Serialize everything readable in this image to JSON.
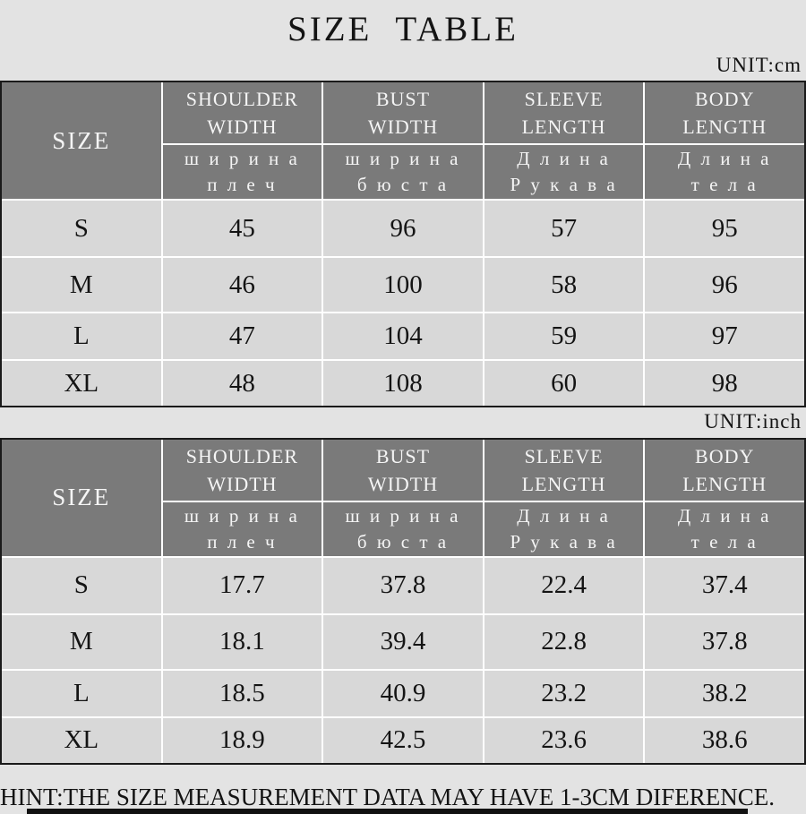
{
  "page": {
    "title": "SIZE TABLE",
    "hint": "HINT:THE SIZE MEASUREMENT DATA MAY HAVE 1-3CM DIFERENCE.",
    "colors": {
      "page_bg": "#e3e3e3",
      "header_bg": "#7a7a7a",
      "cell_bg": "#d8d8d8",
      "grid_line": "#ffffff",
      "table_border": "#1a1a1a",
      "text_dark": "#141414",
      "text_light": "#f5f5f5"
    }
  },
  "size_header": "SIZE",
  "columns": [
    {
      "en1": "SHOULDER",
      "en2": "WIDTH",
      "ru1": "ш и р и н а",
      "ru2": "п л е ч"
    },
    {
      "en1": "BUST",
      "en2": "WIDTH",
      "ru1": "ш и р и н а",
      "ru2": "б ю с т а"
    },
    {
      "en1": "SLEEVE",
      "en2": "LENGTH",
      "ru1": "Д л и н а",
      "ru2": "Р у к а в а"
    },
    {
      "en1": "BODY",
      "en2": "LENGTH",
      "ru1": "Д л и н а",
      "ru2": "т е л а"
    }
  ],
  "cm": {
    "unit": "UNIT:cm",
    "rows": [
      {
        "size": "S",
        "values": [
          "45",
          "96",
          "57",
          "95"
        ]
      },
      {
        "size": "M",
        "values": [
          "46",
          "100",
          "58",
          "96"
        ]
      },
      {
        "size": "L",
        "values": [
          "47",
          "104",
          "59",
          "97"
        ]
      },
      {
        "size": "XL",
        "values": [
          "48",
          "108",
          "60",
          "98"
        ]
      }
    ]
  },
  "inch": {
    "unit": "UNIT:inch",
    "rows": [
      {
        "size": "S",
        "values": [
          "17.7",
          "37.8",
          "22.4",
          "37.4"
        ]
      },
      {
        "size": "M",
        "values": [
          "18.1",
          "39.4",
          "22.8",
          "37.8"
        ]
      },
      {
        "size": "L",
        "values": [
          "18.5",
          "40.9",
          "23.2",
          "38.2"
        ]
      },
      {
        "size": "XL",
        "values": [
          "18.9",
          "42.5",
          "23.6",
          "38.6"
        ]
      }
    ]
  }
}
